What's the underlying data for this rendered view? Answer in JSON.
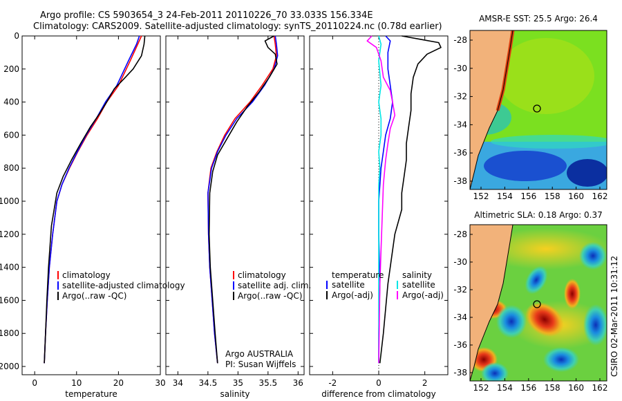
{
  "header": {
    "line1": "Argo profile: CS 5903654_3 24-Feb-2011 20110226_70 33.033S 156.334E",
    "line2": "Climatology: CARS2009. Satellite-adjusted climatology: synTS_20110224.nc (0.78d earlier)"
  },
  "chart_data": [
    {
      "type": "line",
      "id": "temperature",
      "xlabel": "temperature",
      "ylabel": "",
      "xlim": [
        -3,
        30
      ],
      "ylim": [
        2050,
        0
      ],
      "xticks": [
        0,
        10,
        20,
        30
      ],
      "yticks": [
        0,
        200,
        400,
        600,
        800,
        1000,
        1200,
        1400,
        1600,
        1800,
        2000
      ],
      "legend": [
        "climatology",
        "satellite-adjusted climatology",
        "Argo(..raw -QC)"
      ],
      "series": [
        {
          "name": "climatology",
          "color": "#ff0000",
          "x": [
            25.5,
            24.6,
            22.8,
            20.0,
            17.2,
            15.0,
            12.5,
            10.3,
            8.3,
            6.5,
            5.3,
            4.3,
            3.5,
            3.0,
            2.6,
            2.3
          ],
          "y": [
            0,
            50,
            150,
            300,
            400,
            500,
            600,
            700,
            800,
            900,
            1000,
            1200,
            1400,
            1600,
            1800,
            1980
          ]
        },
        {
          "name": "satellite-adjusted climatology",
          "color": "#0000ff",
          "x": [
            25.0,
            24.3,
            22.4,
            19.6,
            16.9,
            14.7,
            12.3,
            10.2,
            8.2,
            6.5,
            5.3,
            4.3,
            3.5,
            3.0,
            2.6,
            2.3
          ],
          "y": [
            0,
            50,
            150,
            300,
            400,
            500,
            600,
            700,
            800,
            900,
            1000,
            1200,
            1400,
            1600,
            1800,
            1980
          ]
        },
        {
          "name": "Argo(..raw -QC)",
          "color": "#000000",
          "x": [
            26.3,
            26.1,
            25.5,
            23.5,
            21.3,
            19.0,
            17.2,
            15.5,
            13.3,
            11.0,
            8.8,
            6.8,
            5.3,
            4.0,
            3.3,
            2.9,
            2.6,
            2.3
          ],
          "y": [
            0,
            50,
            120,
            200,
            260,
            320,
            400,
            470,
            550,
            650,
            750,
            850,
            950,
            1150,
            1400,
            1600,
            1800,
            1980
          ]
        }
      ]
    },
    {
      "type": "line",
      "id": "salinity",
      "xlabel": "salinity",
      "ylabel": "",
      "xlim": [
        33.8,
        36.1
      ],
      "ylim": [
        2050,
        0
      ],
      "xticks": [
        34,
        34.5,
        35,
        35.5,
        36
      ],
      "legend": [
        "climatology",
        "satellite adj. clim.",
        "Argo(..raw -QC)"
      ],
      "annotation": [
        "Argo AUSTRALIA",
        "PI: Susan Wijffels"
      ],
      "series": [
        {
          "name": "climatology",
          "color": "#ff0000",
          "x": [
            35.6,
            35.62,
            35.64,
            35.58,
            35.4,
            35.2,
            34.95,
            34.78,
            34.65,
            34.55,
            34.5,
            34.51,
            34.53,
            34.57,
            34.61,
            34.66
          ],
          "y": [
            0,
            50,
            120,
            200,
            300,
            400,
            500,
            600,
            700,
            800,
            950,
            1200,
            1400,
            1600,
            1800,
            1980
          ]
        },
        {
          "name": "satellite adj. clim.",
          "color": "#0000ff",
          "x": [
            35.62,
            35.64,
            35.66,
            35.6,
            35.44,
            35.24,
            34.98,
            34.8,
            34.66,
            34.56,
            34.5,
            34.51,
            34.53,
            34.57,
            34.61,
            34.66
          ],
          "y": [
            0,
            50,
            120,
            200,
            300,
            400,
            500,
            600,
            700,
            800,
            950,
            1200,
            1400,
            1600,
            1800,
            1980
          ]
        },
        {
          "name": "Argo(..raw -QC)",
          "color": "#000000",
          "x": [
            35.6,
            35.45,
            35.5,
            35.62,
            35.65,
            35.52,
            35.35,
            35.15,
            34.98,
            34.82,
            34.66,
            34.58,
            34.53,
            34.52,
            34.54,
            34.58,
            34.62,
            34.66
          ],
          "y": [
            0,
            30,
            70,
            110,
            170,
            250,
            340,
            430,
            520,
            620,
            720,
            820,
            950,
            1200,
            1400,
            1600,
            1800,
            1980
          ]
        }
      ]
    },
    {
      "type": "line",
      "id": "difference",
      "xlabel": "difference from climatology",
      "ylabel": "",
      "xlim": [
        -3.0,
        3.0
      ],
      "ylim": [
        2050,
        0
      ],
      "xticks": [
        -2,
        0,
        2
      ],
      "legend_temperature_title": "temperature",
      "legend_salinity_title": "salinity",
      "legend_temperature": [
        "satellite",
        "Argo(-adj)"
      ],
      "legend_salinity": [
        "satellite",
        "Argo(-adj)"
      ],
      "series": [
        {
          "name": "temperature satellite",
          "color": "#0000ff",
          "x": [
            0.3,
            0.5,
            0.4,
            0.4,
            0.5,
            0.6,
            0.5,
            0.3,
            0.2,
            0.1,
            0.05,
            0.0,
            0.0,
            0.05,
            0.0,
            0.0
          ],
          "y": [
            0,
            30,
            100,
            200,
            300,
            400,
            500,
            600,
            700,
            800,
            900,
            1000,
            1200,
            1500,
            1800,
            1980
          ]
        },
        {
          "name": "temperature Argo(-adj)",
          "color": "#000000",
          "x": [
            1.0,
            1.8,
            2.6,
            2.7,
            2.1,
            1.7,
            1.5,
            1.4,
            1.4,
            1.3,
            1.2,
            1.2,
            1.1,
            1.0,
            1.0,
            0.7,
            0.4,
            0.2,
            0.05
          ],
          "y": [
            0,
            20,
            40,
            70,
            110,
            170,
            250,
            350,
            450,
            550,
            650,
            750,
            850,
            950,
            1050,
            1200,
            1500,
            1800,
            1980
          ]
        },
        {
          "name": "salinity satellite",
          "color": "#00e5e5",
          "x": [
            0.0,
            0.1,
            0.0,
            0.1,
            0.0,
            0.1,
            0.1,
            0.0,
            0.05,
            0.0,
            0.0,
            0.0,
            0.0
          ],
          "y": [
            0,
            50,
            150,
            300,
            400,
            500,
            600,
            700,
            800,
            900,
            1000,
            1500,
            1980
          ]
        },
        {
          "name": "salinity Argo(-adj)",
          "color": "#ff00ff",
          "x": [
            -0.3,
            -0.5,
            -0.1,
            0.1,
            0.2,
            0.5,
            0.6,
            0.7,
            0.5,
            0.4,
            0.3,
            0.2,
            0.15,
            0.1,
            0.05,
            0.0
          ],
          "y": [
            0,
            30,
            70,
            150,
            250,
            330,
            400,
            480,
            560,
            650,
            750,
            900,
            1100,
            1300,
            1500,
            1980
          ]
        }
      ]
    }
  ],
  "maps": {
    "sst": {
      "title": "AMSR-E SST: 25.5 Argo: 26.4",
      "xticks": [
        "152",
        "154",
        "156",
        "158",
        "160",
        "162"
      ],
      "yticks": [
        "-28",
        "-30",
        "-32",
        "-34",
        "-36",
        "-38"
      ]
    },
    "sla": {
      "title": "Altimetric SLA: 0.18 Argo: 0.37",
      "xticks": [
        "152",
        "154",
        "156",
        "158",
        "160",
        "162"
      ],
      "yticks": [
        "-28",
        "-30",
        "-32",
        "-34",
        "-36",
        "-38"
      ]
    }
  },
  "stamp": "CSIRO 02-Mar-2011 10:31:12"
}
